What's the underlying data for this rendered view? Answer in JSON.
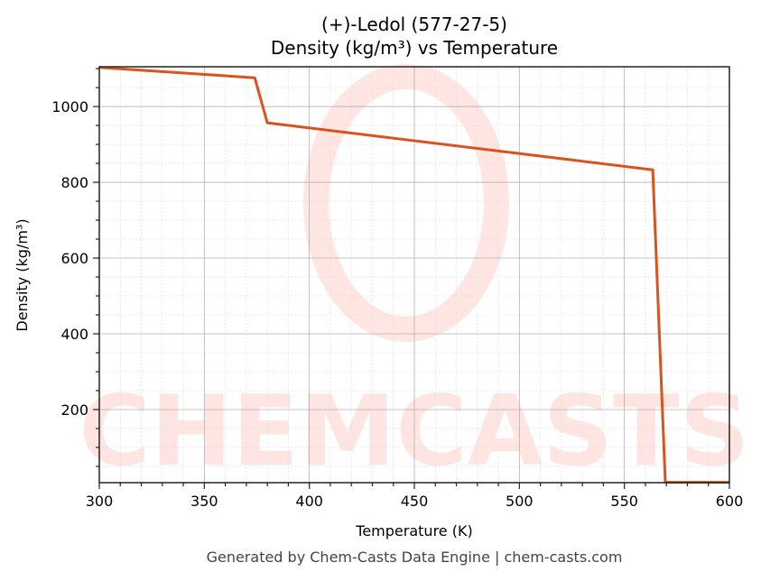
{
  "chart": {
    "title_line1": "(+)-Ledol (577-27-5)",
    "title_line2": "Density (kg/m³) vs Temperature",
    "xlabel": "Temperature (K)",
    "ylabel": "Density (kg/m³)",
    "footer": "Generated by Chem-Casts Data Engine | chem-casts.com",
    "watermark": "CHEMCASTS",
    "line_color": "#d9531e",
    "x_ticks": [
      "300",
      "350",
      "400",
      "450",
      "500",
      "550",
      "600"
    ],
    "y_ticks": [
      "200",
      "400",
      "600",
      "800",
      "1000"
    ]
  },
  "chart_data": {
    "type": "line",
    "title": "(+)-Ledol (577-27-5) Density (kg/m³) vs Temperature",
    "xlabel": "Temperature (K)",
    "ylabel": "Density (kg/m³)",
    "xlim": [
      300,
      600
    ],
    "ylim": [
      7,
      1105
    ],
    "grid": true,
    "legend": null,
    "series": [
      {
        "name": "Density",
        "color": "#d9531e",
        "x": [
          300,
          374,
          380,
          563.5,
          569.5,
          600
        ],
        "y": [
          1103,
          1076,
          957,
          833,
          8,
          8
        ]
      }
    ]
  }
}
